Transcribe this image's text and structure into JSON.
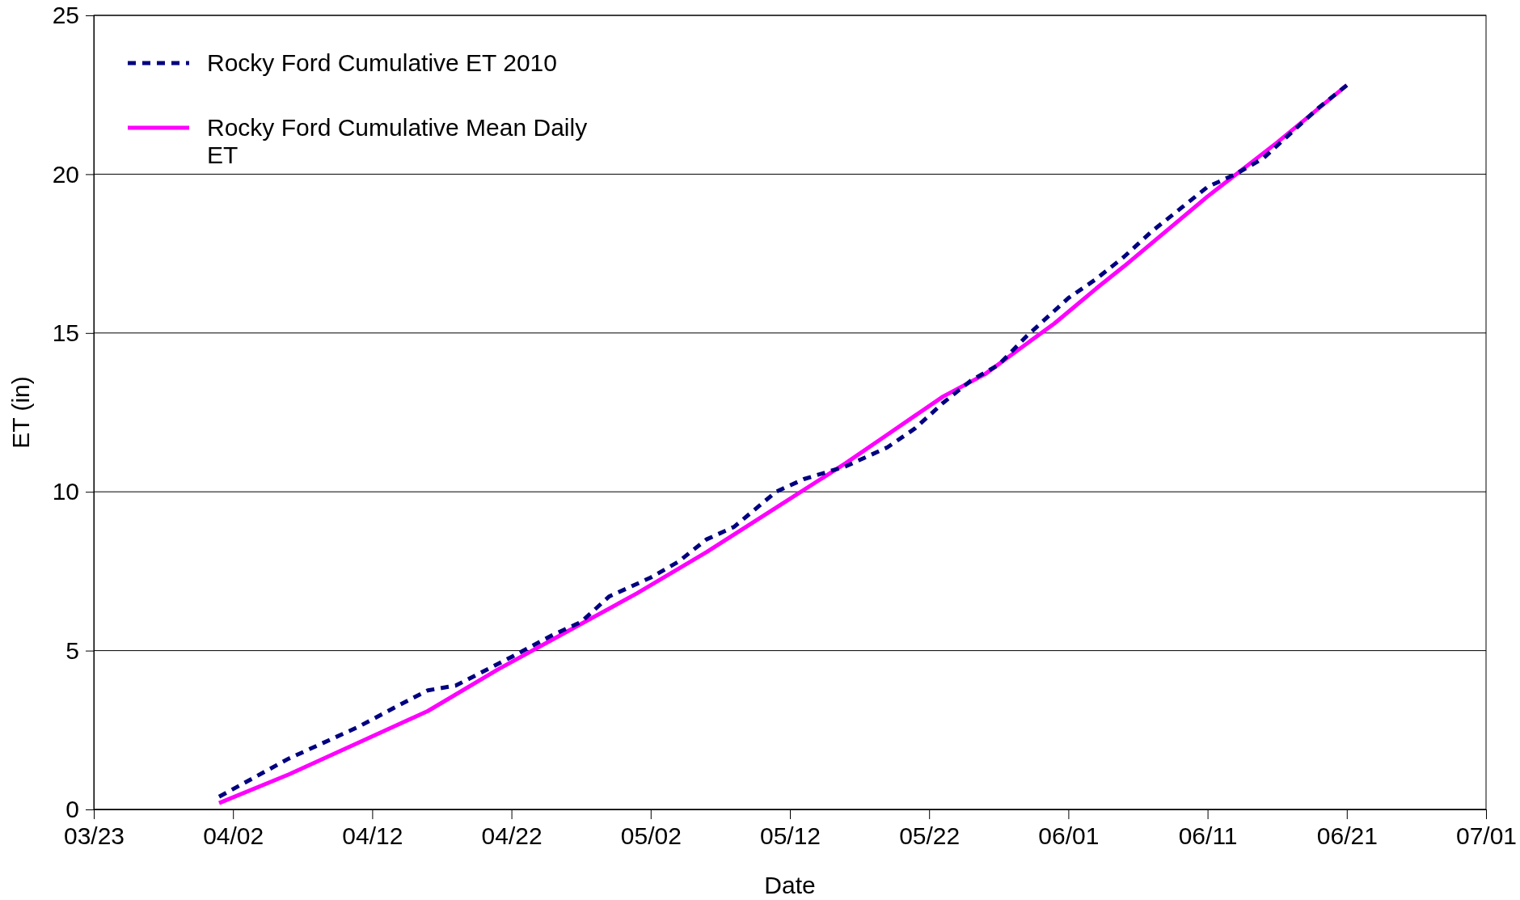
{
  "chart_data": {
    "type": "line",
    "xlabel": "Date",
    "ylabel": "ET (in)",
    "xlim": [
      "2010-03-23",
      "2010-07-01"
    ],
    "xticks": [
      {
        "value": "2010-03-23",
        "label": "03/23"
      },
      {
        "value": "2010-04-02",
        "label": "04/02"
      },
      {
        "value": "2010-04-12",
        "label": "04/12"
      },
      {
        "value": "2010-04-22",
        "label": "04/22"
      },
      {
        "value": "2010-05-02",
        "label": "05/02"
      },
      {
        "value": "2010-05-12",
        "label": "05/12"
      },
      {
        "value": "2010-05-22",
        "label": "05/22"
      },
      {
        "value": "2010-06-01",
        "label": "06/01"
      },
      {
        "value": "2010-06-11",
        "label": "06/11"
      },
      {
        "value": "2010-06-21",
        "label": "06/21"
      },
      {
        "value": "2010-07-01",
        "label": "07/01"
      }
    ],
    "ylim": [
      0,
      25
    ],
    "yticks": [
      0,
      5,
      10,
      15,
      20,
      25
    ],
    "grid": "y",
    "legend": "top left",
    "marker": "none",
    "series": [
      {
        "name": "Rocky Ford Cumulative ET 2010",
        "color": "#000080",
        "line_style": "dashed",
        "x": [
          "2010-04-01",
          "2010-04-06",
          "2010-04-09",
          "2010-04-11",
          "2010-04-14",
          "2010-04-16",
          "2010-04-18",
          "2010-04-22",
          "2010-04-25",
          "2010-04-27",
          "2010-04-29",
          "2010-05-02",
          "2010-05-04",
          "2010-05-06",
          "2010-05-08",
          "2010-05-11",
          "2010-05-13",
          "2010-05-16",
          "2010-05-19",
          "2010-05-21",
          "2010-05-23",
          "2010-05-25",
          "2010-05-27",
          "2010-05-29",
          "2010-06-01",
          "2010-06-03",
          "2010-06-05",
          "2010-06-07",
          "2010-06-09",
          "2010-06-11",
          "2010-06-13",
          "2010-06-15",
          "2010-06-17",
          "2010-06-19",
          "2010-06-21"
        ],
        "values": [
          0.4,
          1.6,
          2.2,
          2.6,
          3.3,
          3.75,
          3.9,
          4.8,
          5.5,
          5.9,
          6.7,
          7.3,
          7.8,
          8.5,
          8.9,
          10.0,
          10.4,
          10.8,
          11.4,
          12.0,
          12.8,
          13.5,
          14.0,
          14.9,
          16.1,
          16.7,
          17.4,
          18.2,
          18.9,
          19.6,
          20.0,
          20.5,
          21.3,
          22.1,
          22.8
        ]
      },
      {
        "name": "Rocky Ford Cumulative Mean Daily ET",
        "color": "#ff00ff",
        "line_style": "solid",
        "x": [
          "2010-04-01",
          "2010-04-06",
          "2010-04-11",
          "2010-04-16",
          "2010-04-21",
          "2010-04-26",
          "2010-05-01",
          "2010-05-06",
          "2010-05-11",
          "2010-05-16",
          "2010-05-19",
          "2010-05-21",
          "2010-05-23",
          "2010-05-26",
          "2010-05-31",
          "2010-06-03",
          "2010-06-05",
          "2010-06-11",
          "2010-06-16",
          "2010-06-21"
        ],
        "values": [
          0.2,
          1.1,
          2.1,
          3.1,
          4.4,
          5.6,
          6.8,
          8.1,
          9.5,
          10.9,
          11.8,
          12.4,
          13.0,
          13.7,
          15.3,
          16.4,
          17.1,
          19.3,
          21.0,
          22.8
        ]
      }
    ]
  }
}
